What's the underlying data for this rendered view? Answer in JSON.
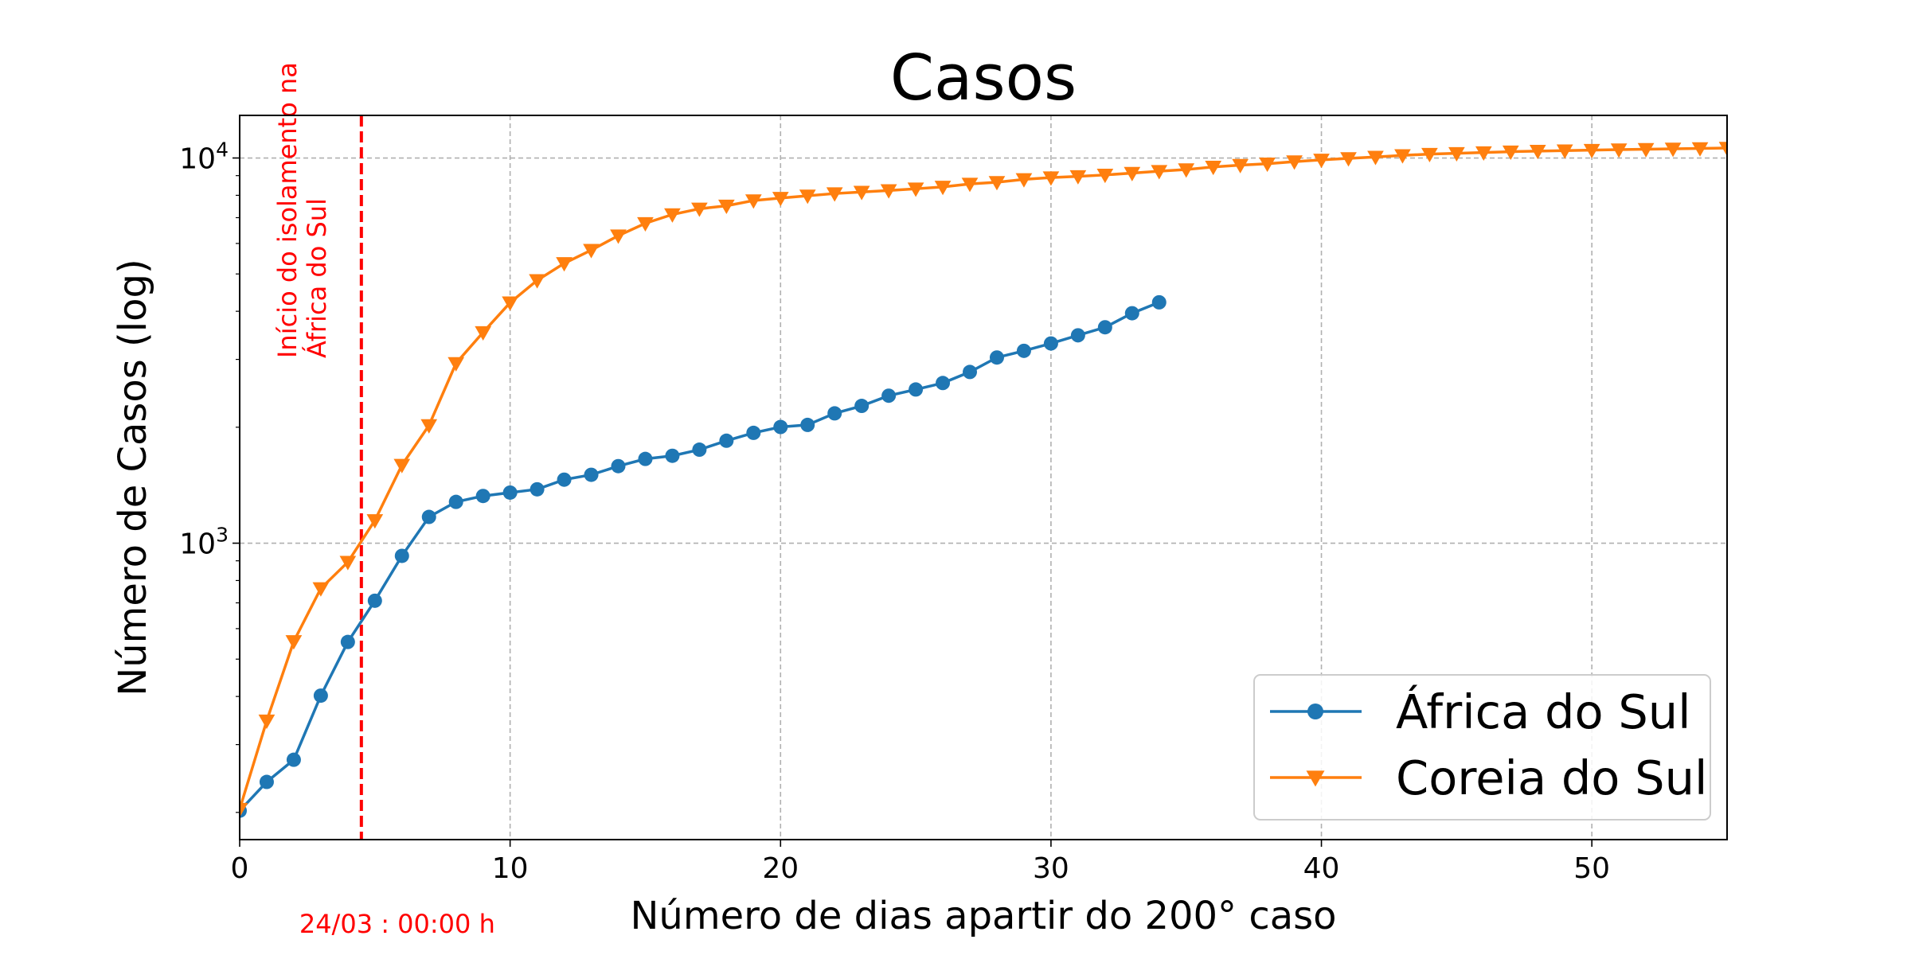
{
  "chart_data": {
    "type": "line",
    "title": "Casos",
    "xlabel": "Número de dias apartir do 200° caso",
    "ylabel": "Número de Casos (log)",
    "xlim": [
      0,
      55
    ],
    "ylim": [
      170,
      12900
    ],
    "yscale": "log",
    "grid": true,
    "legend_position": "lower-right",
    "x_ticks": [
      0,
      10,
      20,
      30,
      40,
      50
    ],
    "y_ticks": [
      {
        "value": 1000,
        "base": "10",
        "exp": "3"
      },
      {
        "value": 10000,
        "base": "10",
        "exp": "4"
      }
    ],
    "vline": {
      "x": 4.5,
      "color": "#ff0000",
      "label_line1": "Início do isolamento na",
      "label_line2": "África do Sul",
      "date_label": "24/03 : 00:00 h"
    },
    "series": [
      {
        "name": "África do Sul",
        "color": "#1f77b4",
        "marker": "circle",
        "x": [
          0,
          1,
          2,
          3,
          4,
          5,
          6,
          7,
          8,
          9,
          10,
          11,
          12,
          13,
          14,
          15,
          16,
          17,
          18,
          19,
          20,
          21,
          22,
          23,
          24,
          25,
          26,
          27,
          28,
          29,
          30,
          31,
          32,
          33,
          34
        ],
        "values": [
          202,
          240,
          274,
          402,
          554,
          709,
          927,
          1170,
          1280,
          1326,
          1353,
          1380,
          1462,
          1505,
          1585,
          1655,
          1686,
          1749,
          1845,
          1934,
          2003,
          2028,
          2173,
          2272,
          2415,
          2506,
          2605,
          2783,
          3034,
          3158,
          3300,
          3465,
          3635,
          3953,
          4220
        ]
      },
      {
        "name": "Coreia do Sul",
        "color": "#ff7f0e",
        "marker": "triangle-down",
        "x": [
          0,
          1,
          2,
          3,
          4,
          5,
          6,
          7,
          8,
          9,
          10,
          11,
          12,
          13,
          14,
          15,
          16,
          17,
          18,
          19,
          20,
          21,
          22,
          23,
          24,
          25,
          26,
          27,
          28,
          29,
          30,
          31,
          32,
          33,
          34,
          35,
          36,
          37,
          38,
          39,
          40,
          41,
          42,
          43,
          44,
          45,
          46,
          47,
          48,
          49,
          50,
          51,
          52,
          53,
          54,
          55
        ],
        "values": [
          204,
          346,
          556,
          763,
          893,
          1146,
          1595,
          2022,
          2931,
          3526,
          4212,
          4812,
          5328,
          5766,
          6284,
          6767,
          7134,
          7382,
          7513,
          7755,
          7869,
          7979,
          8086,
          8162,
          8236,
          8320,
          8413,
          8565,
          8652,
          8799,
          8897,
          8961,
          9037,
          9137,
          9241,
          9332,
          9478,
          9583,
          9661,
          9786,
          9887,
          9976,
          10062,
          10156,
          10237,
          10284,
          10331,
          10384,
          10423,
          10450,
          10480,
          10512,
          10537,
          10564,
          10591,
          10613
        ]
      }
    ]
  }
}
